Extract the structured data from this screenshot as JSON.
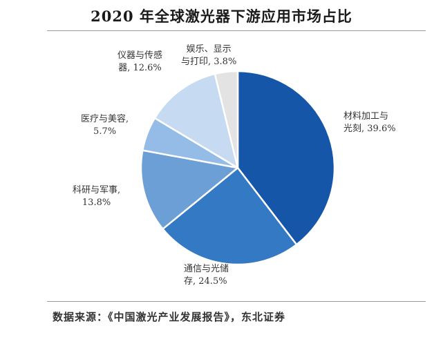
{
  "chart_data": {
    "type": "pie",
    "title": "2020 年全球激光器下游应用市场占比",
    "unit": "%",
    "start_angle_deg": 0,
    "direction": "clockwise",
    "slices": [
      {
        "label_lines": [
          "材料加工与",
          "光刻, 39.6%"
        ],
        "value": 39.6,
        "color": "#1656a8"
      },
      {
        "label_lines": [
          "通信与光储",
          "存, 24.5%"
        ],
        "value": 24.5,
        "color": "#3379c4"
      },
      {
        "label_lines": [
          "科研与军事,",
          "13.8%"
        ],
        "value": 13.8,
        "color": "#6b9fd6"
      },
      {
        "label_lines": [
          "医疗与美容,",
          "5.7%"
        ],
        "value": 5.7,
        "color": "#94bce6"
      },
      {
        "label_lines": [
          "仪器与传感",
          "器, 12.6%"
        ],
        "value": 12.6,
        "color": "#c6dbf2"
      },
      {
        "label_lines": [
          "娱乐、显示",
          "与打印, 3.8%"
        ],
        "value": 3.8,
        "color": "#e3e3e3"
      }
    ]
  },
  "source": "数据来源：《中国激光产业发展报告》，东北证券"
}
